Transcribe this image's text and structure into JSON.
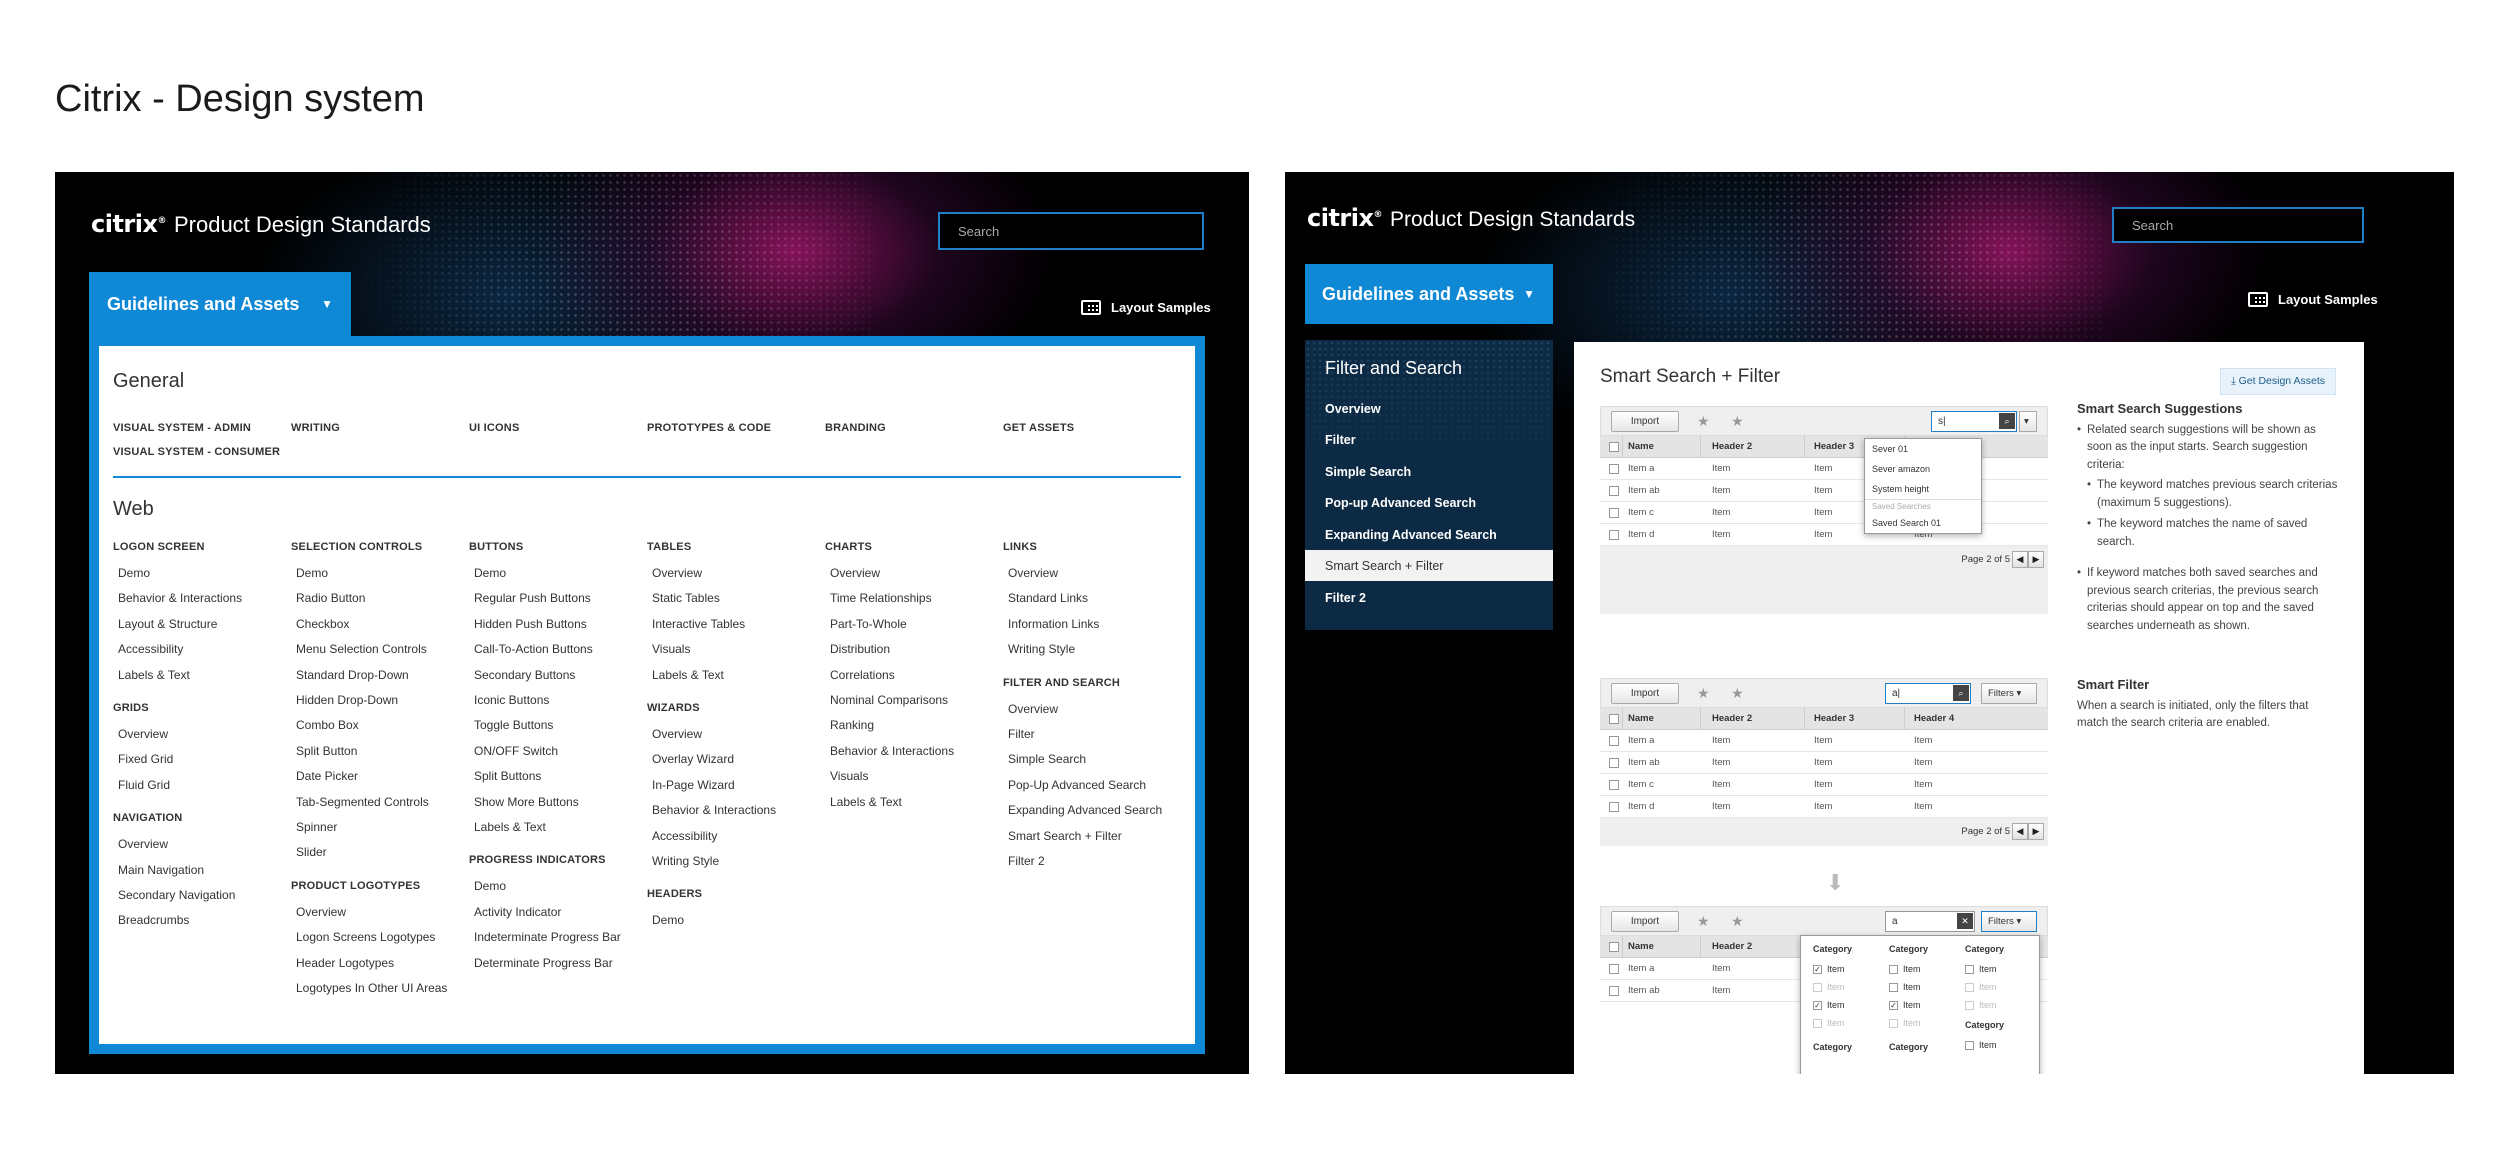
{
  "page_title": "Citrix - Design system",
  "left": {
    "brand": "citrix",
    "app_title": "Product Design Standards",
    "search_placeholder": "Search",
    "guidelines_button": "Guidelines and Assets",
    "layout_samples": "Layout Samples",
    "general_heading": "General",
    "general_links": [
      "VISUAL SYSTEM - ADMIN",
      "VISUAL SYSTEM - CONSUMER",
      "WRITING",
      "UI ICONS",
      "PROTOTYPES & CODE",
      "BRANDING",
      "GET ASSETS"
    ],
    "web_heading": "Web",
    "columns": [
      [
        {
          "title": "LOGON SCREEN",
          "items": [
            "Demo",
            "Behavior & Interactions",
            "Layout & Structure",
            "Accessibility",
            "Labels & Text"
          ]
        },
        {
          "title": "GRIDS",
          "items": [
            "Overview",
            "Fixed Grid",
            "Fluid Grid"
          ]
        },
        {
          "title": "NAVIGATION",
          "items": [
            "Overview",
            "Main Navigation",
            "Secondary Navigation",
            "Breadcrumbs"
          ]
        }
      ],
      [
        {
          "title": "SELECTION CONTROLS",
          "items": [
            "Demo",
            "Radio Button",
            "Checkbox",
            "Menu Selection Controls",
            "Standard Drop-Down",
            "Hidden Drop-Down",
            "Combo Box",
            "Split Button",
            "Date Picker",
            "Tab-Segmented Controls",
            "Spinner",
            "Slider"
          ]
        },
        {
          "title": "PRODUCT LOGOTYPES",
          "items": [
            "Overview",
            "Logon Screens Logotypes",
            "Header Logotypes",
            "Logotypes In Other UI Areas"
          ]
        }
      ],
      [
        {
          "title": "BUTTONS",
          "items": [
            "Demo",
            "Regular Push Buttons",
            "Hidden Push Buttons",
            "Call-To-Action Buttons",
            "Secondary Buttons",
            "Iconic Buttons",
            "Toggle Buttons",
            "ON/OFF Switch",
            "Split Buttons",
            "Show More Buttons",
            "Labels & Text"
          ]
        },
        {
          "title": "PROGRESS INDICATORS",
          "items": [
            "Demo",
            "Activity Indicator",
            "Indeterminate Progress Bar",
            "Determinate Progress Bar"
          ]
        }
      ],
      [
        {
          "title": "TABLES",
          "items": [
            "Overview",
            "Static Tables",
            "Interactive Tables",
            "Visuals",
            "Labels & Text"
          ]
        },
        {
          "title": "WIZARDS",
          "items": [
            "Overview",
            "Overlay Wizard",
            "In-Page Wizard",
            "Behavior & Interactions",
            "Accessibility",
            "Writing Style"
          ]
        },
        {
          "title": "HEADERS",
          "items": [
            "Demo"
          ]
        }
      ],
      [
        {
          "title": "CHARTS",
          "items": [
            "Overview",
            "Time Relationships",
            "Part-To-Whole",
            "Distribution",
            "Correlations",
            "Nominal Comparisons",
            "Ranking",
            "Behavior & Interactions",
            "Visuals",
            "Labels & Text"
          ]
        }
      ],
      [
        {
          "title": "LINKS",
          "items": [
            "Overview",
            "Standard Links",
            "Information Links",
            "Writing Style"
          ]
        },
        {
          "title": "FILTER AND SEARCH",
          "items": [
            "Overview",
            "Filter",
            "Simple Search",
            "Pop-Up Advanced Search",
            "Expanding Advanced Search",
            "Smart Search + Filter",
            "Filter 2"
          ]
        }
      ]
    ]
  },
  "right": {
    "brand": "citrix",
    "app_title": "Product Design Standards",
    "search_placeholder": "Search",
    "guidelines_button": "Guidelines and Assets",
    "layout_samples": "Layout Samples",
    "nav_heading": "Filter and Search",
    "nav_items": [
      "Overview",
      "Filter",
      "Simple Search",
      "Pop-up Advanced Search",
      "Expanding Advanced Search",
      "Smart Search + Filter",
      "Filter 2"
    ],
    "nav_active_index": 5,
    "content_title": "Smart Search + Filter",
    "get_assets": "Get Design Assets",
    "import_label": "Import",
    "headers": [
      "Name",
      "Header 2",
      "Header 3",
      "Header 4"
    ],
    "rows": [
      [
        "Item a",
        "Item",
        "Item",
        "Item"
      ],
      [
        "Item ab",
        "Item",
        "Item",
        "Item"
      ],
      [
        "Item c",
        "Item",
        "Item",
        "Item"
      ],
      [
        "Item d",
        "Item",
        "Item",
        "Item"
      ]
    ],
    "page_text": "Page 2 of 5",
    "search_value_1": "s|",
    "search_value_2": "a|",
    "search_value_3": "a",
    "filters_label": "Filters",
    "suggestions": [
      "Sever 01",
      "Sever amazon",
      "System height"
    ],
    "saved_searches_label": "Saved Searches",
    "saved_search": "Saved Search 01",
    "filter_category": "Category",
    "filter_item": "Item",
    "smart_search_heading": "Smart Search Suggestions",
    "smart_search_p1": "Related search suggestions will be shown as soon as the input starts. Search suggestion criteria:",
    "smart_search_sub1": "The keyword matches previous search criterias (maximum 5 suggestions).",
    "smart_search_sub2": "The keyword matches the name of saved search.",
    "smart_search_p2": "If keyword matches both saved searches and previous search criterias, the previous search criterias should appear on top and the saved searches underneath as shown.",
    "smart_filter_heading": "Smart Filter",
    "smart_filter_text": "When a search is initiated, only the filters that match the search criteria are enabled."
  }
}
